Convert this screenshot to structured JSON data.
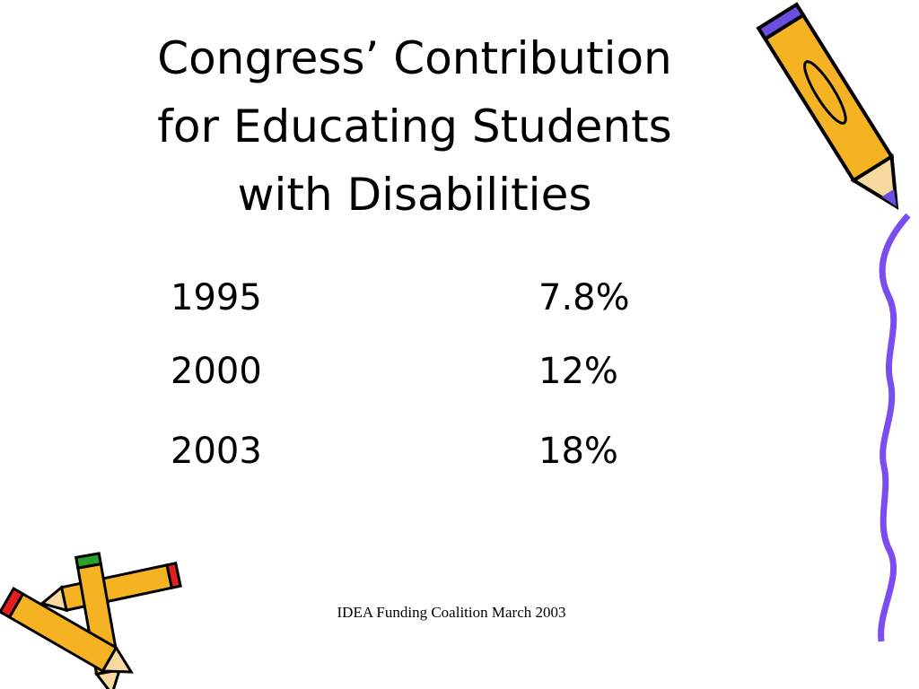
{
  "slide": {
    "title_lines": [
      "Congress’ Contribution",
      "for Educating Students",
      "with Disabilities"
    ],
    "table": {
      "rows": [
        [
          "1995",
          "7.8%"
        ],
        [
          "2000",
          "12%"
        ],
        [
          "2003",
          "18%"
        ]
      ]
    },
    "footer": "IDEA Funding Coalition March 2003"
  }
}
